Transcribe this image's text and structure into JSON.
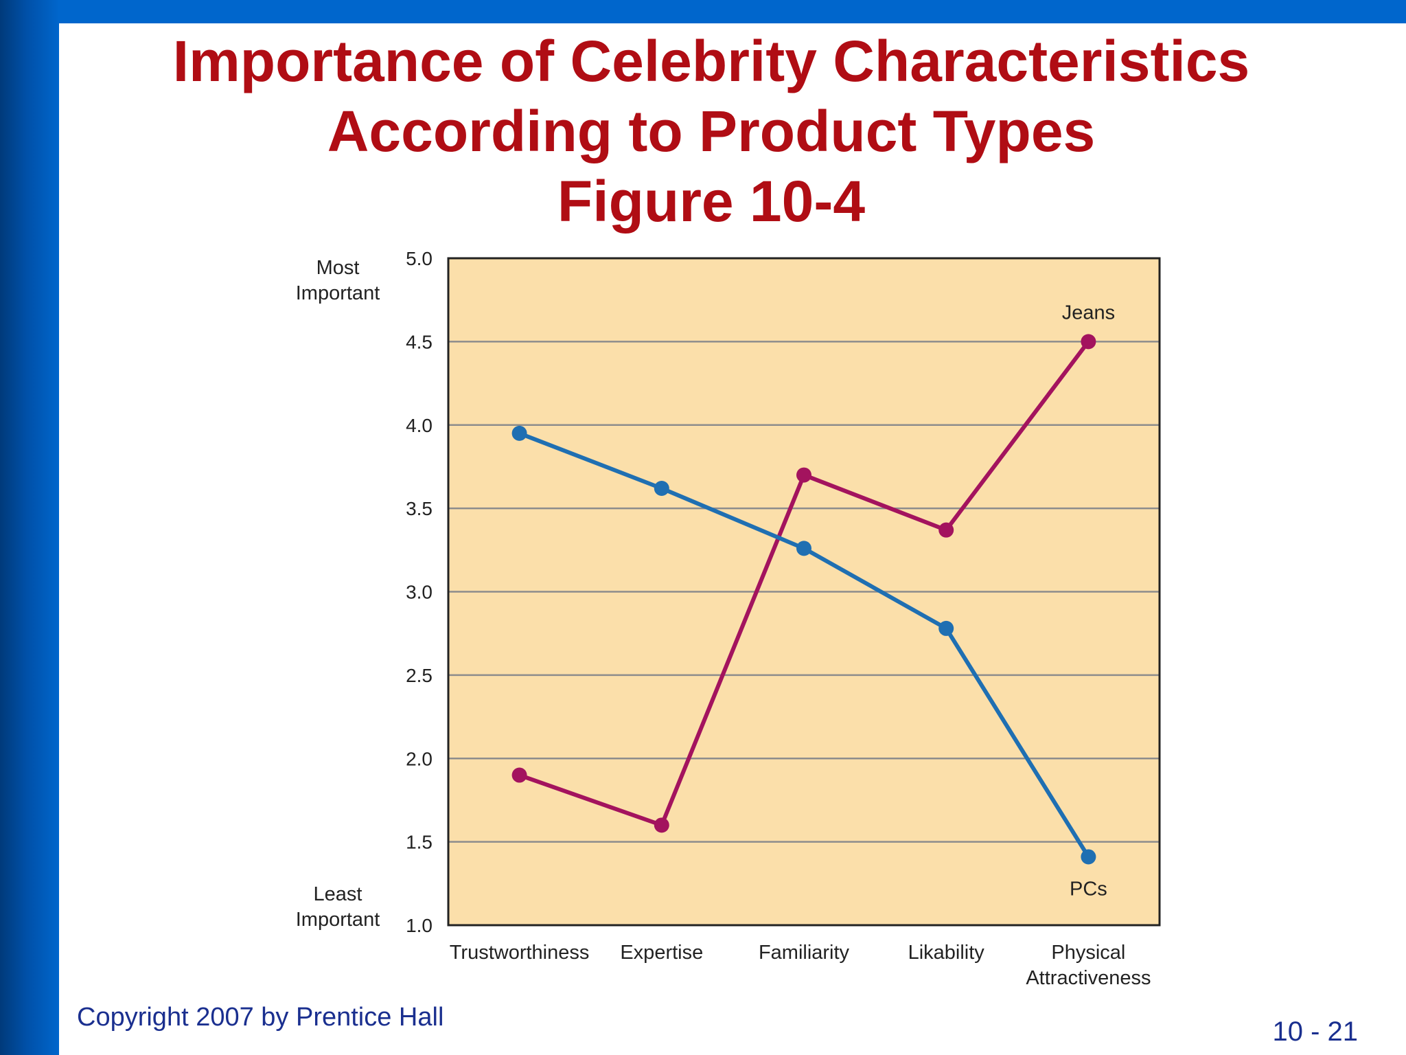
{
  "slide": {
    "title_line1": "Importance of Celebrity Characteristics",
    "title_line2": "According to Product Types",
    "title_line3": "Figure 10-4",
    "copyright": "Copyright 2007 by Prentice Hall",
    "page_number": "10 - 21",
    "colors": {
      "title": "#b00d14",
      "bar": "#0066cc",
      "footer_text": "#1a2f8f"
    }
  },
  "chart_data": {
    "type": "line",
    "categories": [
      "Trustworthiness",
      "Expertise",
      "Familiarity",
      "Likability",
      "Physical Attractiveness"
    ],
    "category_label_lines": [
      [
        "Trustworthiness"
      ],
      [
        "Expertise"
      ],
      [
        "Familiarity"
      ],
      [
        "Likability"
      ],
      [
        "Physical",
        "Attractiveness"
      ]
    ],
    "y_ticks": [
      "5.0",
      "4.5",
      "4.0",
      "3.5",
      "3.0",
      "2.5",
      "2.0",
      "1.5",
      "1.0"
    ],
    "ylim": [
      1.0,
      5.0
    ],
    "y_top_label": [
      "Most",
      "Important"
    ],
    "y_bottom_label": [
      "Least",
      "Important"
    ],
    "grid": true,
    "plot_background": "#fbdfaa",
    "series": [
      {
        "name": "Jeans",
        "color": "#a3135e",
        "values": [
          1.9,
          1.6,
          3.7,
          3.37,
          4.5
        ],
        "label_position": "above-last"
      },
      {
        "name": "PCs",
        "color": "#1f6fb2",
        "values": [
          3.95,
          3.62,
          3.26,
          2.78,
          1.41
        ],
        "label_position": "below-last"
      }
    ]
  }
}
